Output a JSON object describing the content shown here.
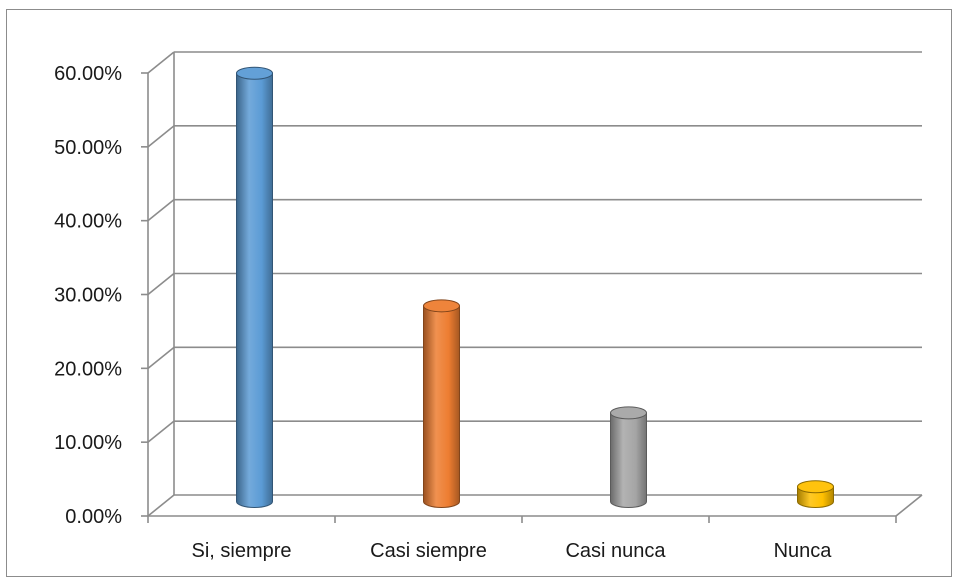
{
  "chart_data": {
    "type": "bar",
    "style": "3d-cylinder",
    "categories": [
      "Si, siempre",
      "Casi siempre",
      "Casi nunca",
      "Nunca"
    ],
    "values": [
      0.58,
      0.265,
      0.12,
      0.02
    ],
    "colors": [
      "#5b9bd5",
      "#ed7d31",
      "#a5a5a5",
      "#ffc000"
    ],
    "y_ticks": [
      "0.00%",
      "10.00%",
      "20.00%",
      "30.00%",
      "40.00%",
      "50.00%",
      "60.00%"
    ],
    "ylim": [
      0,
      0.6
    ],
    "grid": true
  }
}
